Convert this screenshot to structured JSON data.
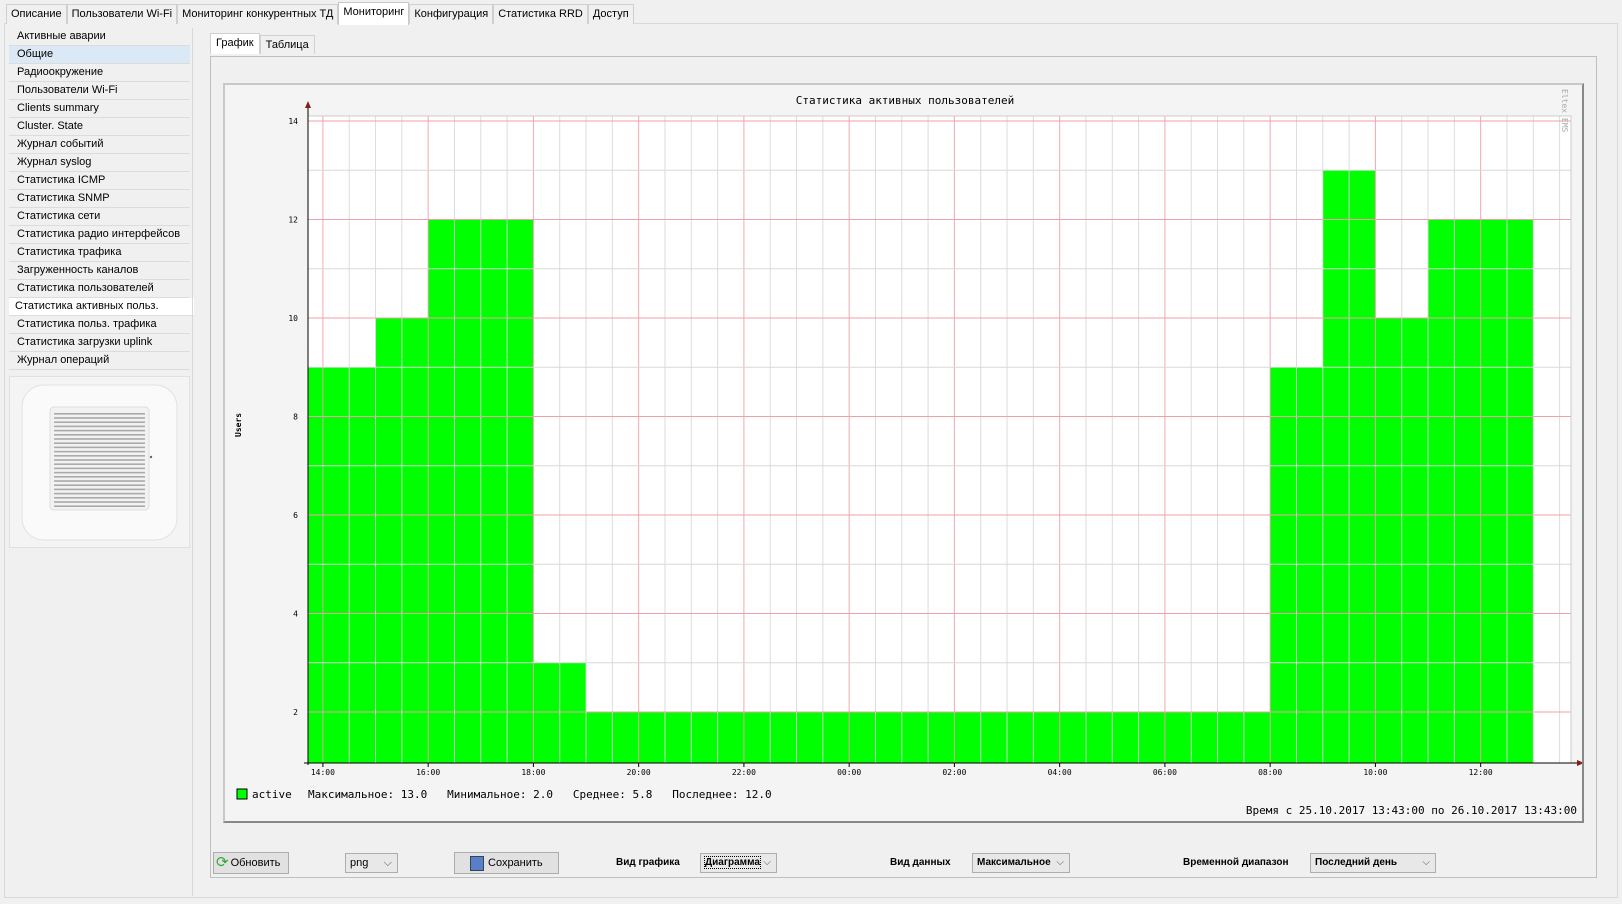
{
  "top_tabs": [
    "Описание",
    "Пользователи Wi-Fi",
    "Мониторинг конкурентных ТД",
    "Мониторинг",
    "Конфигурация",
    "Статистика RRD",
    "Доступ"
  ],
  "top_tab_active": 3,
  "sidebar": {
    "items": [
      "Активные аварии",
      "Общие",
      "Радиоокружение",
      "Пользователи Wi-Fi",
      "Clients summary",
      "Cluster. State",
      "Журнал событий",
      "Журнал syslog",
      "Статистика ICMP",
      "Статистика SNMP",
      "Статистика сети",
      "Статистика радио интерфейсов",
      "Статистика трафика",
      "Загруженность каналов",
      "Статистика пользователей",
      "Статистика активных польз.",
      "Статистика польз. трафика",
      "Статистика загрузки uplink",
      "Журнал операций"
    ],
    "highlighted": 1,
    "selected": 15
  },
  "inner_tabs": [
    "График",
    "Таблица"
  ],
  "watermark": "Eltex EMS",
  "chart_data": {
    "type": "bar",
    "title": "Статистика активных пользователей",
    "ylabel": "Users",
    "xlabel": "",
    "ylim": [
      1,
      14
    ],
    "yticks": [
      2,
      4,
      6,
      8,
      10,
      12,
      14
    ],
    "xlim": [
      "25.10.2017 13:43",
      "26.10.2017 13:43"
    ],
    "xticks": [
      "14:00",
      "16:00",
      "18:00",
      "20:00",
      "22:00",
      "00:00",
      "02:00",
      "04:00",
      "06:00",
      "08:00",
      "10:00",
      "12:00"
    ],
    "grid": true,
    "series": [
      {
        "name": "active",
        "color": "#00ff00",
        "steps": [
          {
            "from": "25.10.2017 13:43",
            "to": "25.10.2017 15:00",
            "value": 9
          },
          {
            "from": "25.10.2017 15:00",
            "to": "25.10.2017 16:00",
            "value": 10
          },
          {
            "from": "25.10.2017 16:00",
            "to": "25.10.2017 18:00",
            "value": 12
          },
          {
            "from": "25.10.2017 18:00",
            "to": "25.10.2017 19:00",
            "value": 3
          },
          {
            "from": "25.10.2017 19:00",
            "to": "26.10.2017 08:00",
            "value": 2
          },
          {
            "from": "26.10.2017 08:00",
            "to": "26.10.2017 09:00",
            "value": 9
          },
          {
            "from": "26.10.2017 09:00",
            "to": "26.10.2017 10:00",
            "value": 13
          },
          {
            "from": "26.10.2017 10:00",
            "to": "26.10.2017 11:00",
            "value": 10
          },
          {
            "from": "26.10.2017 11:00",
            "to": "26.10.2017 13:00",
            "value": 12
          }
        ]
      }
    ],
    "legend": {
      "name": "active",
      "stats": "Максимальное: 13.0   Минимальное: 2.0   Среднее: 5.8   Последнее: 12.0"
    },
    "time_range": "Время с 25.10.2017 13:43:00 по 26.10.2017 13:43:00"
  },
  "toolbar": {
    "refresh": "Обновить",
    "format": "png",
    "save": "Сохранить",
    "chart_type_label": "Вид графика",
    "chart_type": "Диаграмма",
    "data_type_label": "Вид данных",
    "data_type": "Максимальное",
    "range_label": "Временной диапазон",
    "range": "Последний день"
  }
}
